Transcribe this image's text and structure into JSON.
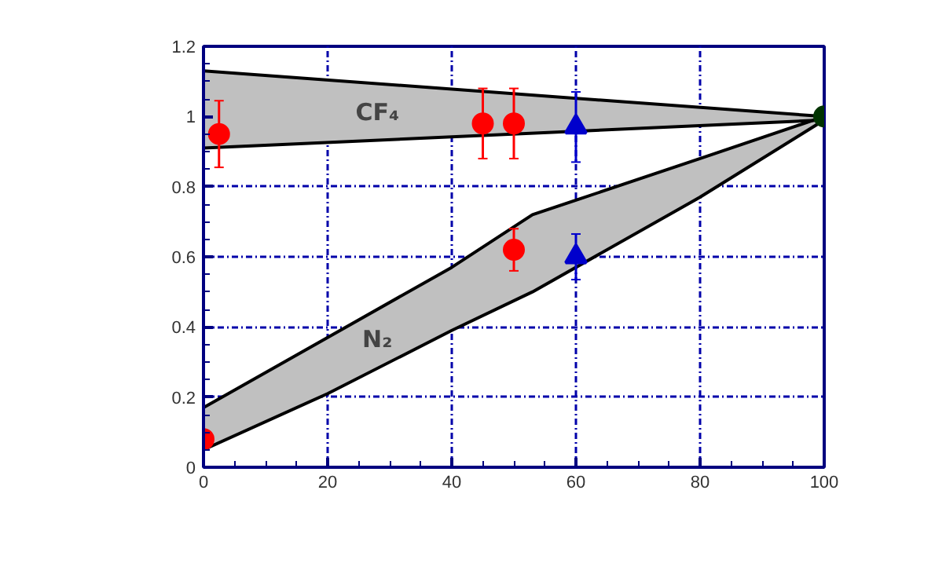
{
  "chart_data": {
    "type": "scatter",
    "xlim": [
      0,
      100
    ],
    "ylim": [
      0,
      1.2
    ],
    "xticks": [
      0,
      20,
      40,
      60,
      80,
      100
    ],
    "yticks": [
      0,
      {
        "value": 0.2,
        "label": "0.2"
      },
      {
        "value": 0.4,
        "label": "0.4"
      },
      {
        "value": 0.6,
        "label": "0.6"
      },
      {
        "value": 0.8,
        "label": "0.8"
      },
      1,
      {
        "value": 1.2,
        "label": "1.2"
      }
    ],
    "grid": true,
    "series": [
      {
        "type": "line",
        "name": "CF₄",
        "color": "#000000",
        "x": [
          0,
          100
        ],
        "values": [
          1.13,
          1.0
        ],
        "lower": [
          0.91,
          0.99
        ],
        "upper": [
          1.13,
          1.0
        ]
      },
      {
        "type": "line",
        "color": "#000000",
        "x": [
          0,
          100
        ],
        "values": [
          0.91,
          0.99
        ]
      },
      {
        "type": "line",
        "name": "N₂",
        "color": "#000000",
        "x": [
          0,
          20,
          40,
          53,
          80,
          100
        ],
        "values": [
          0.17,
          0.37,
          0.57,
          0.72,
          0.88,
          1.0
        ],
        "lower": [
          0.05,
          0.21,
          0.39,
          0.5,
          0.77,
          0.99
        ],
        "upper": [
          0.17,
          0.37,
          0.57,
          0.72,
          0.88,
          1.0
        ]
      },
      {
        "type": "line",
        "color": "#000000",
        "x": [
          0,
          20,
          40,
          53,
          80,
          100
        ],
        "values": [
          0.05,
          0.21,
          0.39,
          0.5,
          0.77,
          0.99
        ]
      },
      {
        "marker": "circle",
        "color": "#ff0000",
        "x": [
          2.5,
          45,
          50,
          0
        ],
        "values": [
          0.95,
          0.98,
          0.62,
          0.08
        ],
        "errors": [
          0.095,
          0.1,
          0.06,
          null
        ]
      },
      {
        "marker": "circle",
        "color": "#ff0000",
        "x": [
          50
        ],
        "values": [
          0.98
        ],
        "errors": [
          0.1
        ]
      },
      {
        "marker": "triangle",
        "color": "#0000cc",
        "x": [
          60,
          60
        ],
        "values": [
          0.97,
          0.6
        ],
        "errors": [
          0.1,
          0.065
        ]
      },
      {
        "marker": "circle",
        "color": "#003300",
        "x": [
          100
        ],
        "values": [
          1.0
        ],
        "errors": [
          null
        ]
      }
    ]
  }
}
